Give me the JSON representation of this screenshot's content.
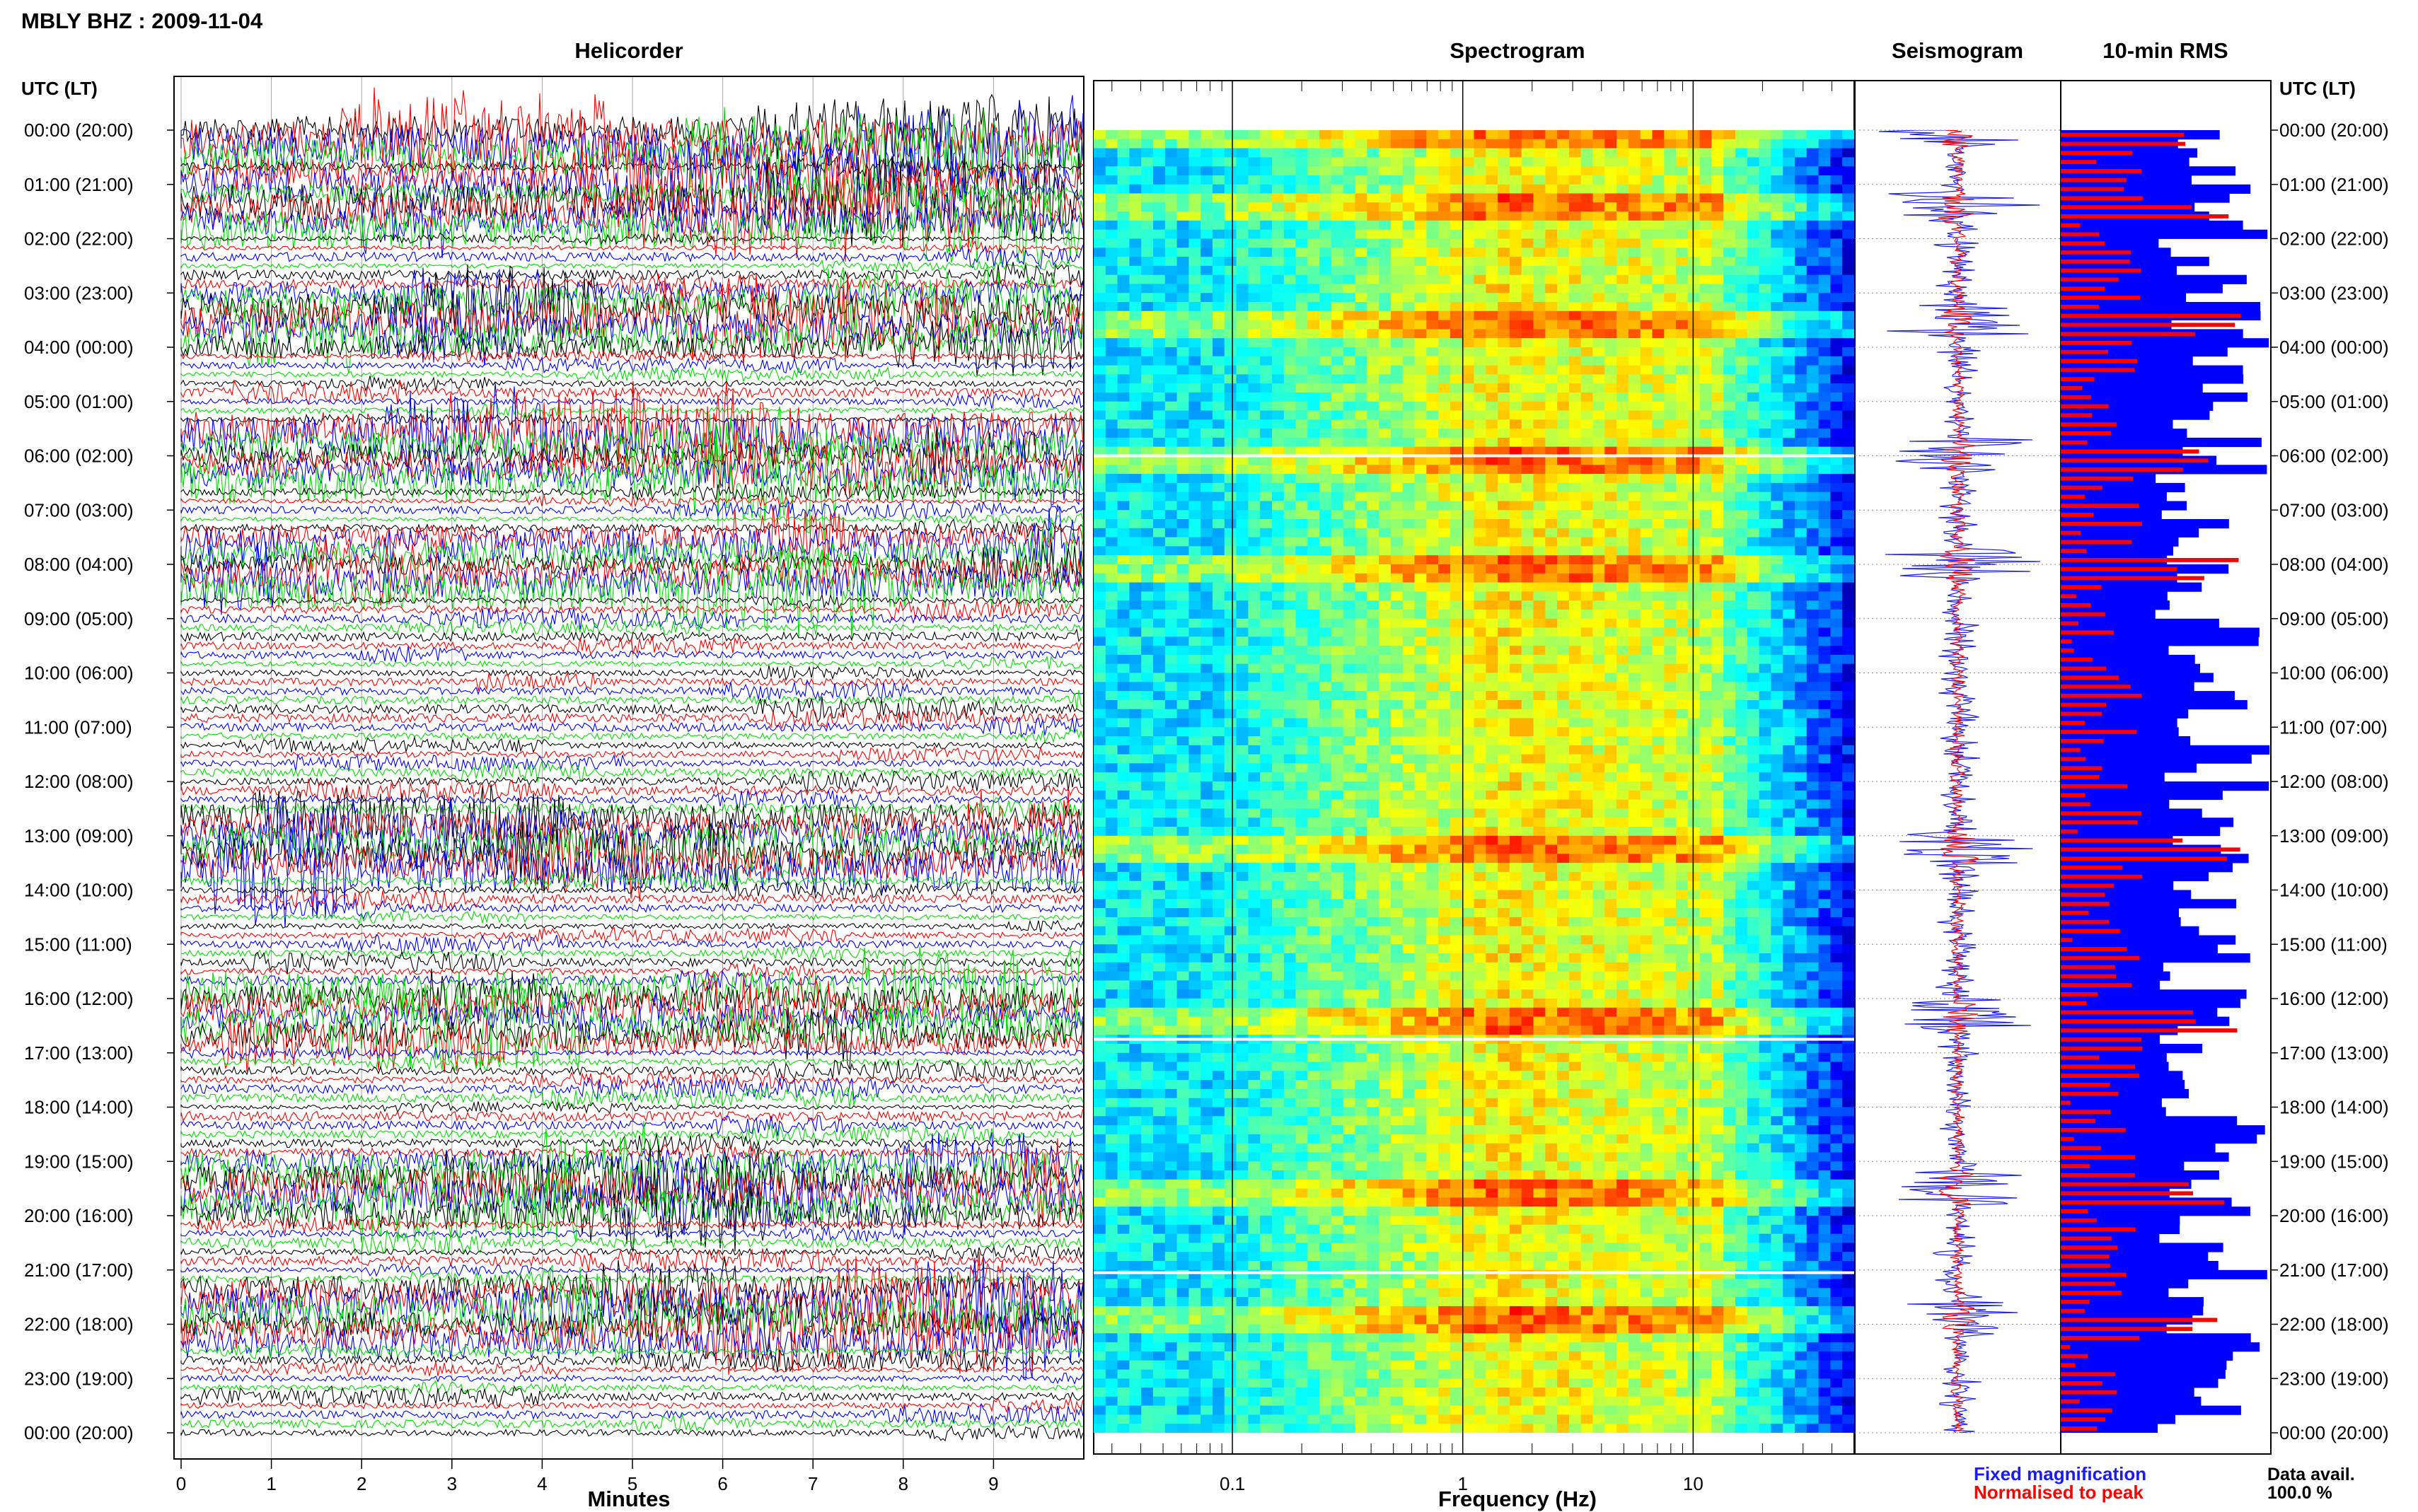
{
  "header": {
    "title": "MBLY BHZ : 2009-11-04"
  },
  "panels": {
    "helicorder_title": "Helicorder",
    "spectrogram_title": "Spectrogram",
    "seismogram_title": "Seismogram",
    "rms_title": "10-min RMS"
  },
  "axes": {
    "time_label_left": "UTC (LT)",
    "time_label_right": "UTC (LT)",
    "minutes_label": "Minutes",
    "frequency_label": "Frequency (Hz)"
  },
  "legend": {
    "fixed": "Fixed magnification",
    "normalised": "Normalised to peak",
    "fixed_color": "#1a1aff",
    "normalised_color": "#ff0000"
  },
  "availability": {
    "label": "Data avail.",
    "value": "100.0 %"
  },
  "colors": {
    "helicorder_cycle": [
      "#000000",
      "#ff0000",
      "#0000ff",
      "#00e000"
    ],
    "rms_fixed": "#0000ff",
    "rms_normalised": "#ff0000"
  },
  "chart_data": [
    {
      "type": "helicorder",
      "title": "Helicorder",
      "xlabel": "Minutes",
      "ylabel": "UTC (LT)",
      "x_ticks": [
        "0",
        "1",
        "2",
        "3",
        "4",
        "5",
        "6",
        "7",
        "8",
        "9"
      ],
      "xlim": [
        0,
        10
      ],
      "lines_per_hour": 6,
      "hour_labels": [
        "00:00 (20:00)",
        "01:00 (21:00)",
        "02:00 (22:00)",
        "03:00 (23:00)",
        "04:00 (00:00)",
        "05:00 (01:00)",
        "06:00 (02:00)",
        "07:00 (03:00)",
        "08:00 (04:00)",
        "09:00 (05:00)",
        "10:00 (06:00)",
        "11:00 (07:00)",
        "12:00 (08:00)",
        "13:00 (09:00)",
        "14:00 (10:00)",
        "15:00 (11:00)",
        "16:00 (12:00)",
        "17:00 (13:00)",
        "18:00 (14:00)",
        "19:00 (15:00)",
        "20:00 (16:00)",
        "21:00 (17:00)",
        "22:00 (18:00)",
        "23:00 (19:00)",
        "00:00 (20:00)"
      ],
      "notable_bursts_hours": [
        0.0,
        1.4,
        3.5,
        6.0,
        8.0,
        13.2,
        16.3,
        19.5,
        21.9
      ]
    },
    {
      "type": "heatmap",
      "title": "Spectrogram",
      "xlabel": "Frequency (Hz)",
      "x_scale": "log",
      "x_ticks": [
        "0.1",
        "1",
        "10"
      ],
      "xlim": [
        0.025,
        50
      ],
      "colormap": "jet",
      "gap_hours": [
        6.0,
        16.75,
        21.05
      ]
    },
    {
      "type": "line",
      "title": "Seismogram",
      "series": [
        {
          "name": "Fixed magnification",
          "color": "#0000ff"
        },
        {
          "name": "Normalised to peak",
          "color": "#ff0000"
        }
      ]
    },
    {
      "type": "bar",
      "title": "10-min RMS",
      "orientation": "horizontal",
      "series": [
        {
          "name": "Fixed magnification",
          "color": "#0000ff"
        },
        {
          "name": "Normalised to peak",
          "color": "#ff0000"
        }
      ]
    }
  ]
}
